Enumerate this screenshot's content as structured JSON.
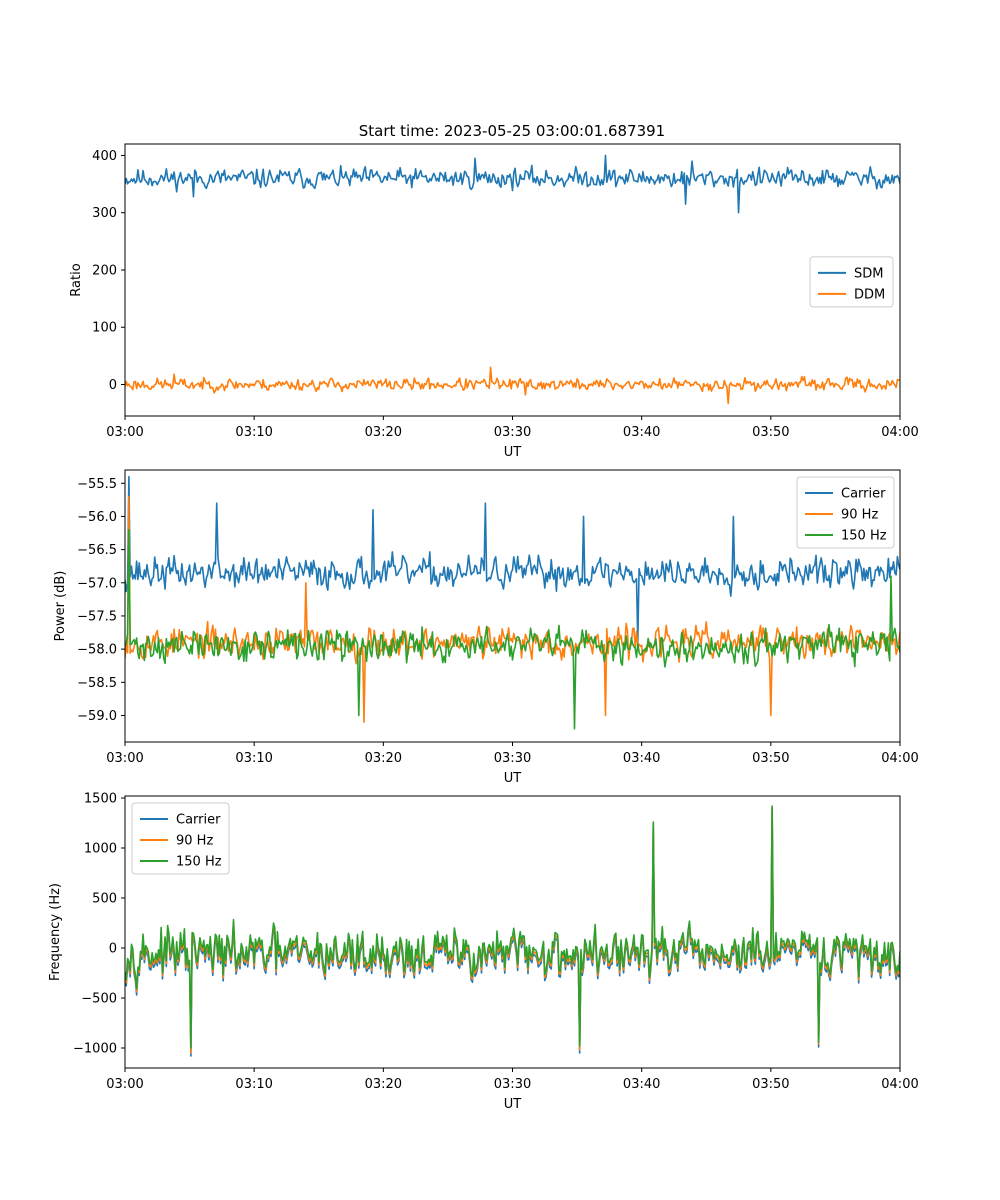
{
  "title": "Start time: 2023-05-25 03:00:01.687391",
  "chart_data": [
    {
      "type": "line",
      "xlabel": "UT",
      "ylabel": "Ratio",
      "xlim": [
        0,
        60
      ],
      "ylim": [
        -55,
        420
      ],
      "x_tick_labels": [
        "03:00",
        "03:10",
        "03:20",
        "03:30",
        "03:40",
        "03:50",
        "04:00"
      ],
      "y_ticks": [
        0,
        100,
        200,
        300,
        400
      ],
      "y_tick_labels": [
        "0",
        "100",
        "200",
        "300",
        "400"
      ],
      "legend": "center-right",
      "series": [
        {
          "name": "SDM",
          "color": "#1f77b4",
          "mean": 360,
          "amplitude": 32,
          "seed": 11,
          "spikes": [
            [
              27.1,
              395
            ],
            [
              37.2,
              400
            ],
            [
              43.9,
              390
            ],
            [
              47.5,
              300
            ],
            [
              43.4,
              315
            ],
            [
              5.3,
              328
            ]
          ]
        },
        {
          "name": "DDM",
          "color": "#ff7f0e",
          "mean": 0,
          "amplitude": 20,
          "seed": 23,
          "spikes": [
            [
              28.3,
              30
            ],
            [
              46.7,
              -33
            ],
            [
              31.0,
              -18
            ],
            [
              3.8,
              18
            ]
          ]
        }
      ]
    },
    {
      "type": "line",
      "xlabel": "UT",
      "ylabel": "Power (dB)",
      "xlim": [
        0,
        60
      ],
      "ylim": [
        -59.4,
        -55.3
      ],
      "x_tick_labels": [
        "03:00",
        "03:10",
        "03:20",
        "03:30",
        "03:40",
        "03:50",
        "04:00"
      ],
      "y_ticks": [
        -59.0,
        -58.5,
        -58.0,
        -57.5,
        -57.0,
        -56.5,
        -56.0,
        -55.5
      ],
      "y_tick_labels": [
        "−59.0",
        "−58.5",
        "−58.0",
        "−57.5",
        "−57.0",
        "−56.5",
        "−56.0",
        "−55.5"
      ],
      "legend": "top-right",
      "series": [
        {
          "name": "Carrier",
          "color": "#1f77b4",
          "mean": -56.85,
          "amplitude": 0.45,
          "seed": 37,
          "spikes": [
            [
              0.3,
              -55.4
            ],
            [
              7.1,
              -55.8
            ],
            [
              19.2,
              -55.9
            ],
            [
              27.9,
              -55.8
            ],
            [
              35.5,
              -56.0
            ],
            [
              47.1,
              -56.0
            ],
            [
              39.7,
              -57.9
            ]
          ]
        },
        {
          "name": "90 Hz",
          "color": "#ff7f0e",
          "mean": -57.9,
          "amplitude": 0.45,
          "seed": 53,
          "spikes": [
            [
              0.3,
              -55.7
            ],
            [
              18.5,
              -59.1
            ],
            [
              37.2,
              -59.0
            ],
            [
              50.0,
              -59.0
            ],
            [
              14.0,
              -57.0
            ]
          ]
        },
        {
          "name": "150 Hz",
          "color": "#2ca02c",
          "mean": -57.95,
          "amplitude": 0.45,
          "seed": 71,
          "spikes": [
            [
              0.3,
              -56.2
            ],
            [
              34.8,
              -59.2
            ],
            [
              18.1,
              -59.0
            ],
            [
              59.3,
              -56.9
            ]
          ]
        }
      ]
    },
    {
      "type": "line",
      "xlabel": "UT",
      "ylabel": "Frequency (Hz)",
      "xlim": [
        0,
        60
      ],
      "ylim": [
        -1200,
        1520
      ],
      "x_tick_labels": [
        "03:00",
        "03:10",
        "03:20",
        "03:30",
        "03:40",
        "03:50",
        "04:00"
      ],
      "y_ticks": [
        -1000,
        -500,
        0,
        500,
        1000,
        1500
      ],
      "y_tick_labels": [
        "−1000",
        "−500",
        "0",
        "500",
        "1000",
        "1500"
      ],
      "legend": "top-left",
      "series": [
        {
          "name": "Carrier",
          "color": "#1f77b4",
          "mean": -40,
          "amplitude": 430,
          "seed": 97,
          "offset": -60,
          "spikes": [
            [
              5.1,
              -1080
            ],
            [
              35.2,
              -1050
            ],
            [
              50.1,
              1380
            ],
            [
              40.9,
              1220
            ],
            [
              53.7,
              -990
            ]
          ]
        },
        {
          "name": "90 Hz",
          "color": "#ff7f0e",
          "mean": -40,
          "amplitude": 430,
          "seed": 97,
          "offset": -30,
          "spikes": [
            [
              5.1,
              -1050
            ],
            [
              35.2,
              -1020
            ],
            [
              50.1,
              1400
            ],
            [
              40.9,
              1240
            ],
            [
              53.7,
              -960
            ]
          ]
        },
        {
          "name": "150 Hz",
          "color": "#2ca02c",
          "mean": -40,
          "amplitude": 430,
          "seed": 97,
          "offset": 0,
          "spikes": [
            [
              5.1,
              -1000
            ],
            [
              35.2,
              -980
            ],
            [
              50.1,
              1420
            ],
            [
              40.9,
              1260
            ],
            [
              53.7,
              -940
            ]
          ]
        }
      ]
    }
  ]
}
